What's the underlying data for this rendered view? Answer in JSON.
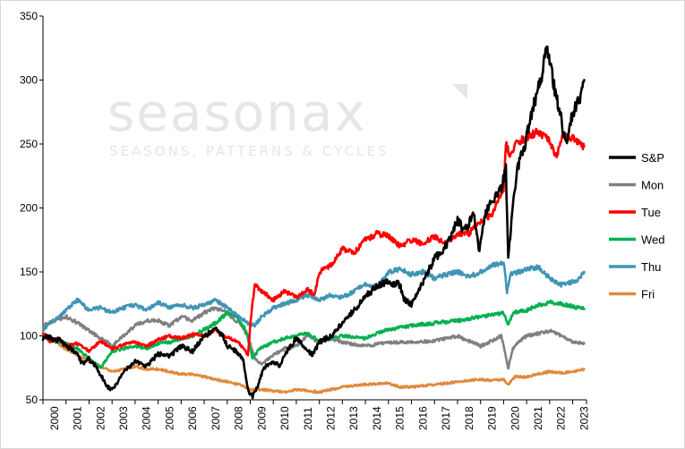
{
  "watermark": {
    "brand": "seasonax",
    "tagline": "SEASONS, PATTERNS & CYCLES"
  },
  "chart_data": {
    "type": "line",
    "title": "",
    "xlabel": "",
    "ylabel": "",
    "xlim": [
      2000.0,
      2023.6
    ],
    "ylim": [
      50,
      350
    ],
    "yticks": [
      50,
      100,
      150,
      200,
      250,
      300,
      350
    ],
    "xtick_labels": [
      "2000",
      "2001",
      "2002",
      "2003",
      "2004",
      "2005",
      "2006",
      "2007",
      "2008",
      "2009",
      "2010",
      "2011",
      "2012",
      "2013",
      "2014",
      "2015",
      "2016",
      "2017",
      "2018",
      "2019",
      "2020",
      "2021",
      "2022",
      "2023"
    ],
    "grid": false,
    "legend_position": "right",
    "series": [
      {
        "name": "S&P",
        "color": "#000000",
        "x": [
          2000.0,
          2000.2,
          2000.5,
          2000.7,
          2001.0,
          2001.2,
          2001.5,
          2001.7,
          2002.0,
          2002.3,
          2002.55,
          2002.8,
          2003.0,
          2003.2,
          2003.5,
          2004.0,
          2004.5,
          2005.0,
          2005.5,
          2006.0,
          2006.5,
          2007.0,
          2007.5,
          2007.8,
          2008.0,
          2008.4,
          2008.7,
          2008.9,
          2009.1,
          2009.3,
          2009.6,
          2010.0,
          2010.3,
          2010.5,
          2011.0,
          2011.3,
          2011.7,
          2012.0,
          2012.5,
          2013.0,
          2013.5,
          2014.0,
          2014.5,
          2015.0,
          2015.5,
          2015.7,
          2016.0,
          2016.1,
          2016.5,
          2017.0,
          2017.5,
          2018.0,
          2018.3,
          2018.7,
          2018.95,
          2019.2,
          2019.5,
          2019.9,
          2020.1,
          2020.2,
          2020.4,
          2020.6,
          2021.0,
          2021.3,
          2021.6,
          2021.9,
          2022.0,
          2022.3,
          2022.5,
          2022.7,
          2022.8,
          2023.0,
          2023.2,
          2023.4,
          2023.5
        ],
        "y": [
          98,
          100,
          96,
          97,
          92,
          90,
          85,
          78,
          82,
          76,
          68,
          60,
          58,
          62,
          72,
          80,
          76,
          86,
          84,
          92,
          88,
          100,
          105,
          100,
          92,
          88,
          80,
          58,
          52,
          60,
          75,
          80,
          76,
          86,
          98,
          92,
          85,
          95,
          100,
          110,
          120,
          130,
          140,
          142,
          140,
          128,
          125,
          128,
          142,
          160,
          170,
          190,
          182,
          195,
          165,
          195,
          205,
          215,
          230,
          162,
          200,
          230,
          255,
          280,
          300,
          325,
          315,
          285,
          270,
          250,
          258,
          275,
          280,
          290,
          300
        ]
      },
      {
        "name": "Mon",
        "color": "#808080",
        "x": [
          2000.0,
          2000.5,
          2001.0,
          2001.5,
          2002.0,
          2002.5,
          2002.8,
          2003.0,
          2003.5,
          2004.0,
          2004.5,
          2005.0,
          2005.5,
          2006.0,
          2006.5,
          2007.0,
          2007.5,
          2008.0,
          2008.5,
          2008.9,
          2009.2,
          2009.5,
          2010.0,
          2010.5,
          2011.0,
          2011.5,
          2012.0,
          2012.5,
          2013.0,
          2014.0,
          2015.0,
          2016.0,
          2017.0,
          2018.0,
          2018.5,
          2019.0,
          2019.5,
          2019.9,
          2020.2,
          2020.4,
          2020.7,
          2021.0,
          2021.5,
          2022.0,
          2022.5,
          2023.0,
          2023.5
        ],
        "y": [
          108,
          112,
          115,
          110,
          104,
          98,
          95,
          92,
          100,
          108,
          112,
          112,
          108,
          115,
          112,
          118,
          122,
          118,
          110,
          100,
          82,
          78,
          85,
          90,
          92,
          100,
          95,
          98,
          95,
          92,
          95,
          95,
          96,
          100,
          96,
          92,
          96,
          100,
          75,
          90,
          96,
          100,
          102,
          104,
          100,
          95,
          94
        ]
      },
      {
        "name": "Tue",
        "color": "#ff0000",
        "x": [
          2000.0,
          2000.3,
          2000.7,
          2001.0,
          2001.5,
          2002.0,
          2002.5,
          2003.0,
          2003.5,
          2004.0,
          2004.5,
          2005.0,
          2005.5,
          2006.0,
          2006.5,
          2007.0,
          2007.5,
          2008.0,
          2008.5,
          2008.9,
          2009.05,
          2009.2,
          2009.5,
          2010.0,
          2010.5,
          2011.0,
          2011.5,
          2011.8,
          2012.0,
          2012.5,
          2013.0,
          2013.5,
          2014.0,
          2014.5,
          2015.0,
          2015.5,
          2016.0,
          2016.5,
          2017.0,
          2017.5,
          2018.0,
          2018.5,
          2019.0,
          2019.5,
          2020.0,
          2020.1,
          2020.3,
          2020.5,
          2021.0,
          2021.5,
          2022.0,
          2022.3,
          2022.6,
          2023.0,
          2023.5
        ],
        "y": [
          102,
          96,
          98,
          92,
          94,
          88,
          96,
          90,
          93,
          95,
          92,
          97,
          100,
          98,
          101,
          100,
          104,
          99,
          95,
          85,
          118,
          140,
          135,
          128,
          135,
          130,
          136,
          132,
          150,
          155,
          168,
          165,
          175,
          180,
          178,
          170,
          175,
          172,
          178,
          172,
          180,
          180,
          190,
          195,
          215,
          250,
          240,
          250,
          255,
          260,
          252,
          240,
          258,
          255,
          248
        ]
      },
      {
        "name": "Wed",
        "color": "#00b050",
        "x": [
          2000.0,
          2000.5,
          2001.0,
          2001.5,
          2002.0,
          2002.5,
          2003.0,
          2003.5,
          2004.0,
          2004.5,
          2005.0,
          2005.5,
          2006.0,
          2006.5,
          2007.0,
          2007.5,
          2008.0,
          2008.4,
          2008.8,
          2009.1,
          2009.4,
          2010.0,
          2010.5,
          2011.0,
          2011.5,
          2012.0,
          2012.5,
          2013.0,
          2014.0,
          2014.5,
          2015.0,
          2016.0,
          2017.0,
          2018.0,
          2019.0,
          2020.0,
          2020.2,
          2020.4,
          2021.0,
          2021.5,
          2022.0,
          2022.5,
          2023.0,
          2023.5
        ],
        "y": [
          100,
          96,
          94,
          90,
          82,
          75,
          88,
          90,
          92,
          90,
          94,
          95,
          98,
          100,
          105,
          110,
          118,
          115,
          105,
          82,
          90,
          95,
          98,
          100,
          102,
          96,
          98,
          100,
          98,
          102,
          105,
          108,
          110,
          112,
          115,
          118,
          108,
          118,
          120,
          124,
          126,
          125,
          123,
          121
        ]
      },
      {
        "name": "Thu",
        "color": "#4095b5",
        "x": [
          2000.0,
          2000.5,
          2001.0,
          2001.5,
          2002.0,
          2002.5,
          2003.0,
          2003.5,
          2004.0,
          2004.5,
          2005.0,
          2005.5,
          2006.0,
          2006.5,
          2007.0,
          2007.5,
          2008.0,
          2008.5,
          2008.9,
          2009.2,
          2009.5,
          2010.0,
          2010.5,
          2011.0,
          2011.5,
          2012.0,
          2012.5,
          2013.0,
          2013.5,
          2014.0,
          2014.5,
          2015.0,
          2015.5,
          2016.0,
          2016.5,
          2017.0,
          2017.5,
          2018.0,
          2018.5,
          2019.0,
          2019.5,
          2020.0,
          2020.15,
          2020.3,
          2021.0,
          2021.5,
          2022.0,
          2022.5,
          2023.0,
          2023.3,
          2023.5
        ],
        "y": [
          105,
          112,
          120,
          128,
          120,
          122,
          118,
          122,
          124,
          120,
          126,
          122,
          124,
          122,
          124,
          128,
          122,
          115,
          110,
          108,
          115,
          122,
          125,
          128,
          132,
          128,
          132,
          130,
          135,
          140,
          138,
          150,
          152,
          148,
          150,
          145,
          148,
          150,
          146,
          150,
          155,
          158,
          135,
          148,
          152,
          154,
          145,
          140,
          142,
          145,
          150
        ]
      },
      {
        "name": "Fri",
        "color": "#e08a3c",
        "x": [
          2000.0,
          2000.5,
          2001.0,
          2001.5,
          2002.0,
          2002.5,
          2003.0,
          2003.5,
          2004.0,
          2004.5,
          2005.0,
          2005.5,
          2006.0,
          2006.5,
          2007.0,
          2007.5,
          2008.0,
          2008.5,
          2009.0,
          2009.5,
          2010.0,
          2010.5,
          2011.0,
          2011.5,
          2012.0,
          2012.5,
          2013.0,
          2014.0,
          2015.0,
          2015.5,
          2016.0,
          2016.5,
          2017.0,
          2018.0,
          2019.0,
          2019.5,
          2020.0,
          2020.2,
          2020.5,
          2021.0,
          2021.5,
          2022.0,
          2022.5,
          2023.0,
          2023.5
        ],
        "y": [
          102,
          96,
          90,
          85,
          80,
          76,
          72,
          74,
          76,
          74,
          74,
          72,
          70,
          70,
          68,
          66,
          64,
          62,
          58,
          58,
          57,
          56,
          58,
          57,
          56,
          58,
          60,
          62,
          63,
          60,
          60,
          61,
          62,
          64,
          66,
          65,
          66,
          62,
          68,
          68,
          70,
          72,
          71,
          72,
          74
        ]
      }
    ]
  }
}
